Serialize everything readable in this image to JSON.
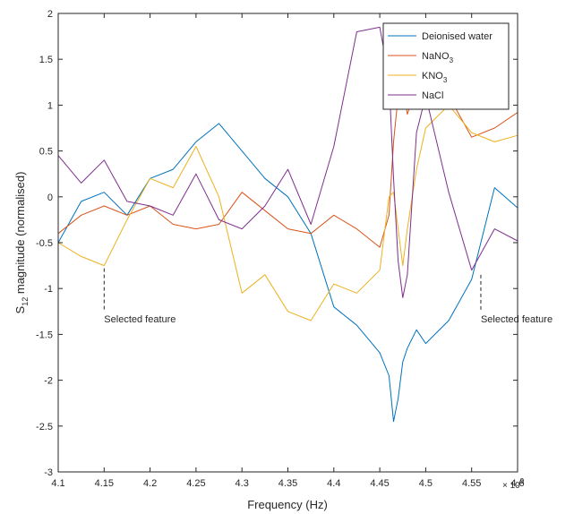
{
  "chart_data": {
    "type": "line",
    "xlabel": "Frequency (Hz)",
    "ylabel": "S12 magnitude (normalised)",
    "ylabel_main": "S",
    "ylabel_sub": "12",
    "ylabel_rest": " magnitude (normalised)",
    "x_exponent_label": "× 10",
    "x_exponent_power": "9",
    "xlim": [
      4100000000.0,
      4600000000.0
    ],
    "ylim": [
      -3,
      2
    ],
    "x_tick_values": [
      4100000000.0,
      4150000000.0,
      4200000000.0,
      4250000000.0,
      4300000000.0,
      4350000000.0,
      4400000000.0,
      4450000000.0,
      4500000000.0,
      4550000000.0,
      4600000000.0
    ],
    "x_tick_labels": [
      "4.1",
      "4.15",
      "4.2",
      "4.25",
      "4.3",
      "4.35",
      "4.4",
      "4.45",
      "4.5",
      "4.55",
      "4.6"
    ],
    "y_tick_values": [
      -3,
      -2.5,
      -2,
      -1.5,
      -1,
      -0.5,
      0,
      0.5,
      1,
      1.5,
      2
    ],
    "y_tick_labels": [
      "-3",
      "-2.5",
      "-2",
      "-1.5",
      "-1",
      "-0.5",
      "0",
      "0.5",
      "1",
      "1.5",
      "2"
    ],
    "grid": false,
    "legend_position": "top-right",
    "x": [
      4100000000.0,
      4125000000.0,
      4150000000.0,
      4175000000.0,
      4200000000.0,
      4225000000.0,
      4250000000.0,
      4275000000.0,
      4300000000.0,
      4325000000.0,
      4350000000.0,
      4375000000.0,
      4400000000.0,
      4425000000.0,
      4450000000.0,
      4460000000.0,
      4465000000.0,
      4470000000.0,
      4475000000.0,
      4480000000.0,
      4490000000.0,
      4500000000.0,
      4525000000.0,
      4550000000.0,
      4575000000.0,
      4600000000.0
    ],
    "series": [
      {
        "name": "Deionised water",
        "label_parts": [
          "Deionised water"
        ],
        "color": "#0072BD",
        "values": [
          -0.5,
          -0.05,
          0.05,
          -0.2,
          0.2,
          0.3,
          0.6,
          0.8,
          0.5,
          0.2,
          0.0,
          -0.4,
          -1.2,
          -1.4,
          -1.7,
          -1.95,
          -2.45,
          -2.2,
          -1.8,
          -1.65,
          -1.45,
          -1.6,
          -1.35,
          -0.9,
          0.1,
          -0.12
        ]
      },
      {
        "name": "NaNO3",
        "label_parts": [
          "NaNO",
          "3"
        ],
        "color": "#D95319",
        "values": [
          -0.4,
          -0.2,
          -0.1,
          -0.2,
          -0.1,
          -0.3,
          -0.35,
          -0.3,
          0.05,
          -0.15,
          -0.35,
          -0.4,
          -0.2,
          -0.35,
          -0.55,
          -0.2,
          0.6,
          1.1,
          1.2,
          0.9,
          1.2,
          1.05,
          1.1,
          0.65,
          0.75,
          0.92
        ]
      },
      {
        "name": "KNO3",
        "label_parts": [
          "KNO",
          "3"
        ],
        "color": "#EDB120",
        "values": [
          -0.5,
          -0.65,
          -0.75,
          -0.25,
          0.2,
          0.1,
          0.55,
          0.0,
          -1.05,
          -0.85,
          -1.25,
          -1.35,
          -0.95,
          -1.05,
          -0.8,
          0.0,
          0.05,
          -0.35,
          -0.75,
          -0.35,
          0.3,
          0.75,
          1.0,
          0.7,
          0.6,
          0.67
        ]
      },
      {
        "name": "NaCl",
        "label_parts": [
          "NaCl"
        ],
        "color": "#7E2F8E",
        "values": [
          0.45,
          0.15,
          0.4,
          -0.05,
          -0.1,
          -0.2,
          0.25,
          -0.25,
          -0.35,
          -0.1,
          0.3,
          -0.3,
          0.55,
          1.8,
          1.85,
          1.3,
          0.2,
          -0.7,
          -1.1,
          -0.85,
          0.7,
          1.1,
          0.05,
          -0.8,
          -0.35,
          -0.48
        ]
      }
    ],
    "annotations": [
      {
        "text": "Selected feature",
        "x": 4150000000.0,
        "y_from": -0.78,
        "y_to": -1.25
      },
      {
        "text": "Selected feature",
        "x": 4560000000.0,
        "y_from": -0.85,
        "y_to": -1.25
      }
    ]
  }
}
